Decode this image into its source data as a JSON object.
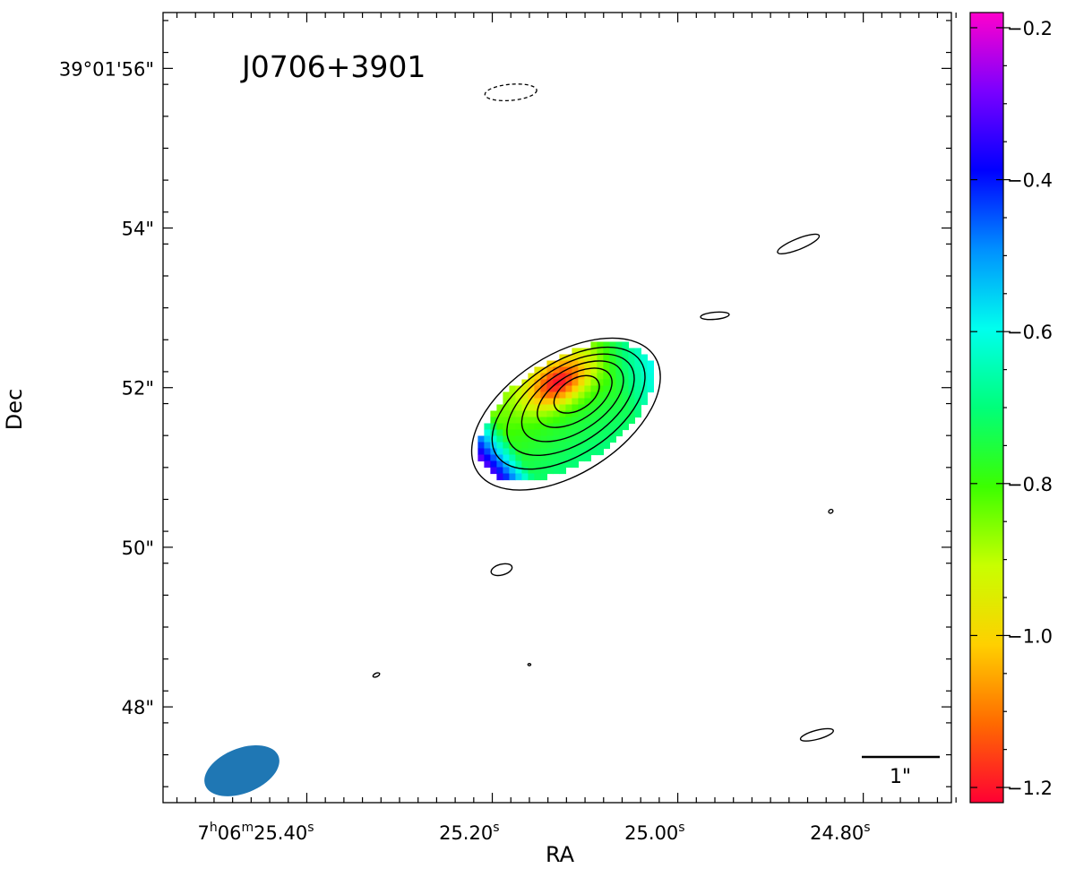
{
  "chart_data": {
    "type": "heatmap",
    "title": "J0706+3901",
    "xlabel": "RA",
    "ylabel": "Dec",
    "x_ticks": [
      {
        "value": 25.4,
        "prefix": "7",
        "h": "h",
        "mid": "06",
        "m": "m",
        "sec": "25.40",
        "s": "s"
      },
      {
        "value": 25.2,
        "sec": "25.20",
        "s": "s"
      },
      {
        "value": 25.0,
        "sec": "25.00",
        "s": "s"
      },
      {
        "value": 24.8,
        "sec": "24.80",
        "s": "s"
      }
    ],
    "y_ticks": [
      {
        "value": 56,
        "label": "39°01'56\""
      },
      {
        "value": 54,
        "label": "54\""
      },
      {
        "value": 52,
        "label": "52\""
      },
      {
        "value": 50,
        "label": "50\""
      },
      {
        "value": 48,
        "label": "48\""
      }
    ],
    "xlim_seconds": [
      25.555,
      24.705
    ],
    "ylim_arcsec": [
      46.8,
      56.7
    ],
    "colorbar": {
      "label": "",
      "range": [
        -1.22,
        -0.18
      ],
      "ticks": [
        {
          "value": -0.2,
          "label": "−0.2"
        },
        {
          "value": -0.4,
          "label": "−0.4"
        },
        {
          "value": -0.6,
          "label": "−0.6"
        },
        {
          "value": -0.8,
          "label": "−0.8"
        },
        {
          "value": -1.0,
          "label": "−1.0"
        },
        {
          "value": -1.2,
          "label": "−1.2"
        }
      ],
      "colormap": "gist_rainbow",
      "stops": [
        "#ff0033",
        "#ff6a00",
        "#ffd000",
        "#c8ff00",
        "#3cff00",
        "#00ff7a",
        "#00ffee",
        "#0090ff",
        "#0000ff",
        "#7a00ff",
        "#ff00cc"
      ]
    },
    "source": {
      "center_ra_s": 25.12,
      "center_dec": 51.7,
      "position_angle_deg": -33,
      "spectral_index_range": [
        -1.22,
        -0.2
      ]
    },
    "contour_levels": 6,
    "negative_contour": {
      "ra_s": 25.18,
      "dec": 55.7
    },
    "beam": {
      "ra_s": 25.47,
      "dec": 47.2,
      "color": "#1f77b4"
    },
    "scale_bar": {
      "label": "1\"",
      "length_arcsec": 1
    },
    "grid": false,
    "legend": "none"
  }
}
